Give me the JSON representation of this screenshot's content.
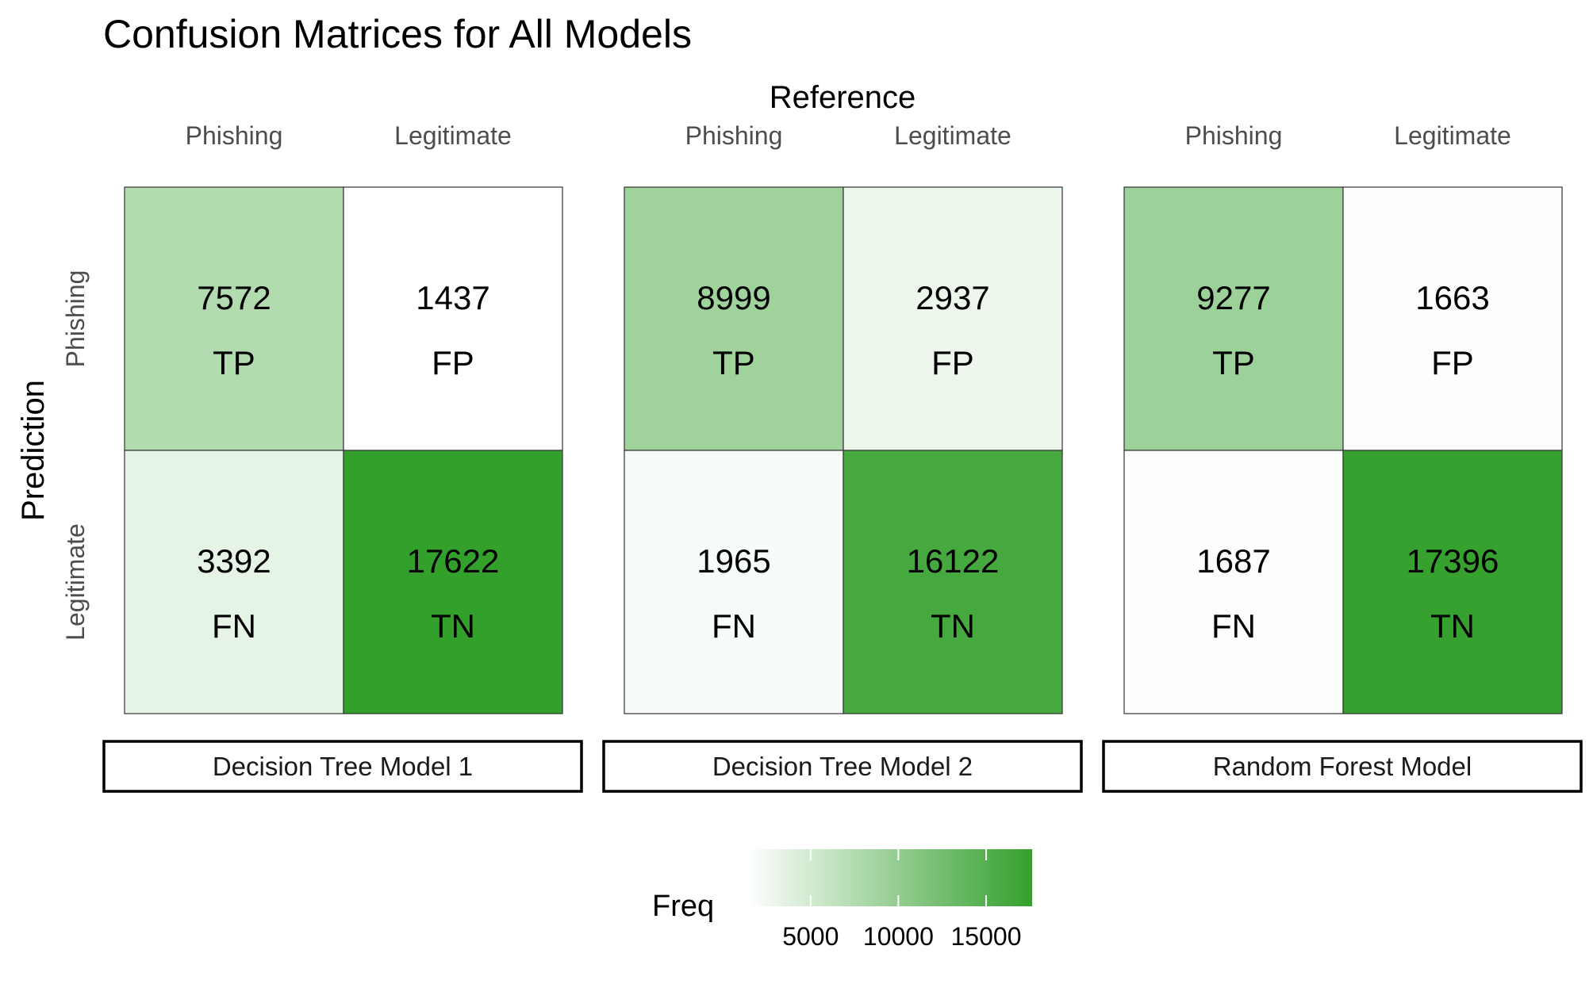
{
  "chart_data": {
    "type": "heatmap",
    "title": "Confusion Matrices for All Models",
    "xlabel": "Reference",
    "ylabel": "Prediction",
    "x_categories": [
      "Phishing",
      "Legitimate"
    ],
    "y_categories": [
      "Phishing",
      "Legitimate"
    ],
    "legend": {
      "title": "Freq",
      "ticks": [
        "5000",
        "10000",
        "15000"
      ],
      "tick_values": [
        5000,
        10000,
        15000
      ],
      "range": [
        1437,
        17622
      ],
      "low_color": "#ffffff",
      "high_color": "#33a02c",
      "position": "bottom"
    },
    "panels": [
      {
        "name": "Decision Tree Model 1",
        "cells": [
          {
            "prediction": "Phishing",
            "reference": "Phishing",
            "value": 7572,
            "value_label": "7572",
            "label": "TP"
          },
          {
            "prediction": "Phishing",
            "reference": "Legitimate",
            "value": 1437,
            "value_label": "1437",
            "label": "FP"
          },
          {
            "prediction": "Legitimate",
            "reference": "Phishing",
            "value": 3392,
            "value_label": "3392",
            "label": "FN"
          },
          {
            "prediction": "Legitimate",
            "reference": "Legitimate",
            "value": 17622,
            "value_label": "17622",
            "label": "TN"
          }
        ]
      },
      {
        "name": "Decision Tree Model 2",
        "cells": [
          {
            "prediction": "Phishing",
            "reference": "Phishing",
            "value": 8999,
            "value_label": "8999",
            "label": "TP"
          },
          {
            "prediction": "Phishing",
            "reference": "Legitimate",
            "value": 2937,
            "value_label": "2937",
            "label": "FP"
          },
          {
            "prediction": "Legitimate",
            "reference": "Phishing",
            "value": 1965,
            "value_label": "1965",
            "label": "FN"
          },
          {
            "prediction": "Legitimate",
            "reference": "Legitimate",
            "value": 16122,
            "value_label": "16122",
            "label": "TN"
          }
        ]
      },
      {
        "name": "Random Forest Model",
        "cells": [
          {
            "prediction": "Phishing",
            "reference": "Phishing",
            "value": 9277,
            "value_label": "9277",
            "label": "TP"
          },
          {
            "prediction": "Phishing",
            "reference": "Legitimate",
            "value": 1663,
            "value_label": "1663",
            "label": "FP"
          },
          {
            "prediction": "Legitimate",
            "reference": "Phishing",
            "value": 1687,
            "value_label": "1687",
            "label": "FN"
          },
          {
            "prediction": "Legitimate",
            "reference": "Legitimate",
            "value": 17396,
            "value_label": "17396",
            "label": "TN"
          }
        ]
      }
    ]
  }
}
